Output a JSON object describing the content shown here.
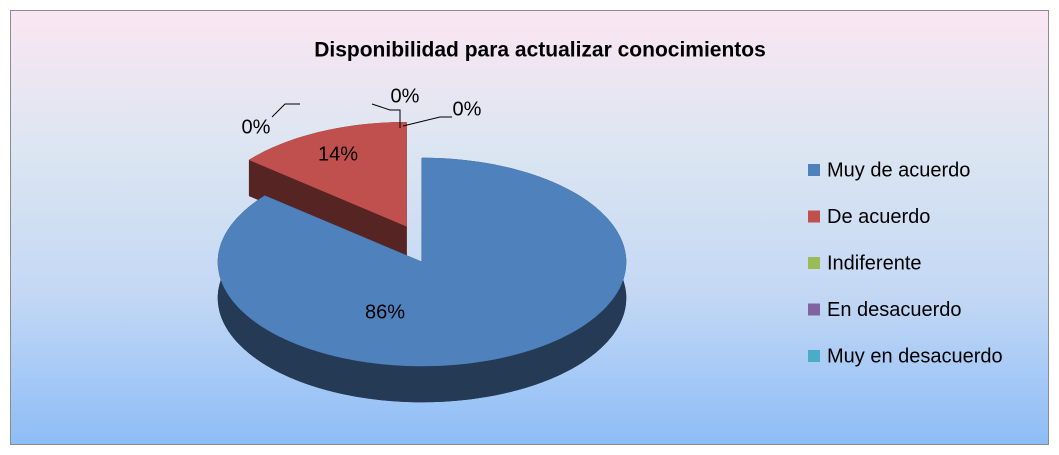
{
  "chart_data": {
    "type": "pie",
    "title": "Disponibilidad para actualizar conocimientos",
    "categories": [
      "Muy de acuerdo",
      "De acuerdo",
      "Indiferente",
      "En desacuerdo",
      "Muy en desacuerdo"
    ],
    "values": [
      86,
      14,
      0,
      0,
      0
    ],
    "value_labels": [
      "86%",
      "14%",
      "0%",
      "0%",
      "0%"
    ],
    "colors": [
      "#4f81bd",
      "#c0504d",
      "#9bbb59",
      "#8064a2",
      "#4bacc6"
    ],
    "legend": "right"
  }
}
